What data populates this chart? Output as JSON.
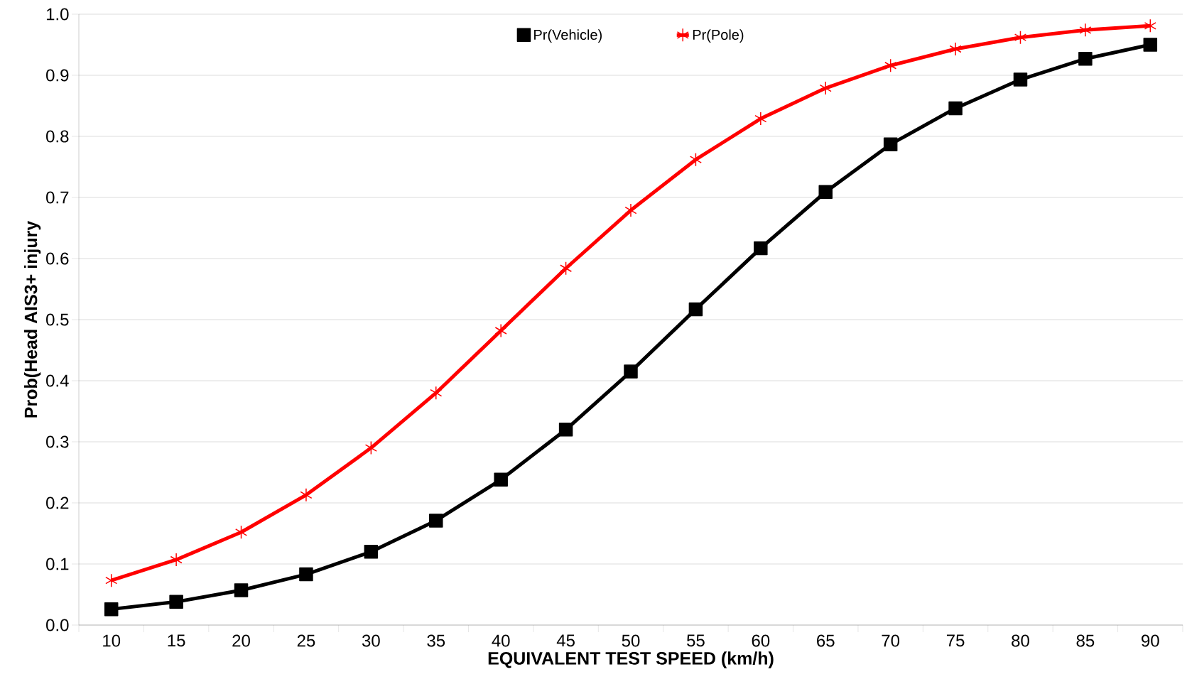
{
  "chart_data": {
    "type": "line",
    "xlabel": "EQUIVALENT TEST SPEED (km/h)",
    "ylabel": "Prob(Head AIS3+ injury",
    "categories": [
      "10",
      "15",
      "20",
      "25",
      "30",
      "35",
      "40",
      "45",
      "50",
      "55",
      "60",
      "65",
      "70",
      "75",
      "80",
      "85",
      "90"
    ],
    "series": [
      {
        "name": "Pr(Vehicle)",
        "color": "#000000",
        "marker": "square",
        "values": [
          0.026,
          0.038,
          0.057,
          0.083,
          0.12,
          0.171,
          0.238,
          0.32,
          0.415,
          0.517,
          0.617,
          0.709,
          0.787,
          0.846,
          0.893,
          0.927,
          0.95
        ]
      },
      {
        "name": "Pr(Pole)",
        "color": "#ff0000",
        "marker": "cross",
        "values": [
          0.073,
          0.107,
          0.152,
          0.213,
          0.29,
          0.38,
          0.482,
          0.584,
          0.679,
          0.762,
          0.829,
          0.879,
          0.916,
          0.943,
          0.962,
          0.974,
          0.981
        ]
      }
    ],
    "ylim": [
      0,
      1
    ],
    "yticks": [
      {
        "value": 0,
        "label": "0.0"
      },
      {
        "value": 0.1,
        "label": "0.1"
      },
      {
        "value": 0.2,
        "label": "0.2"
      },
      {
        "value": 0.3,
        "label": "0.3"
      },
      {
        "value": 0.4,
        "label": "0.4"
      },
      {
        "value": 0.5,
        "label": "0.5"
      },
      {
        "value": 0.6,
        "label": "0.6"
      },
      {
        "value": 0.7,
        "label": "0.7"
      },
      {
        "value": 0.8,
        "label": "0.8"
      },
      {
        "value": 0.9,
        "label": "0.9"
      },
      {
        "value": 1,
        "label": "1.0"
      }
    ],
    "grid": "y",
    "legend": "top",
    "line_style": "solid"
  }
}
